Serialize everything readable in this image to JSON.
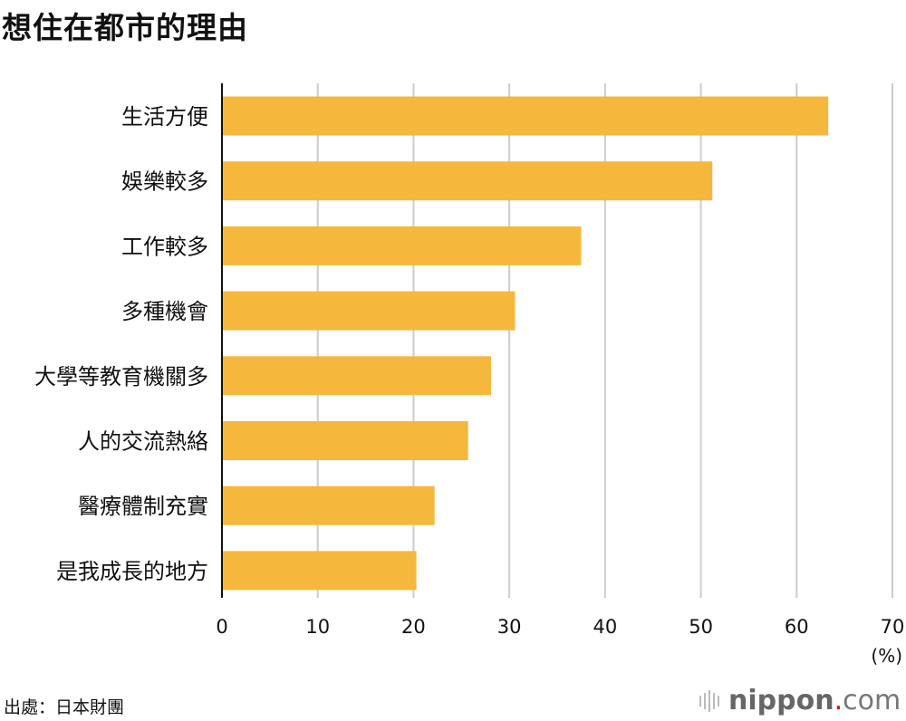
{
  "chart_data": {
    "type": "bar",
    "orientation": "horizontal",
    "title": "想住在都市的理由",
    "categories": [
      "生活方便",
      "娛樂較多",
      "工作較多",
      "多種機會",
      "大學等教育機關多",
      "人的交流熱絡",
      "醫療體制充實",
      "是我成長的地方"
    ],
    "values": [
      63.3,
      51.2,
      37.5,
      30.6,
      28.1,
      25.7,
      22.2,
      20.3
    ],
    "xlim": [
      0,
      70
    ],
    "xticks": [
      "0",
      "10",
      "20",
      "30",
      "40",
      "50",
      "60",
      "70"
    ],
    "xlabel": "(%)",
    "grid": true,
    "bar_color": "#F5B83D",
    "grid_color": "#CCCCCC"
  },
  "source": "出處：日本財團",
  "logo": {
    "name": "nippon",
    "dot": ".",
    "suffix": "com"
  }
}
